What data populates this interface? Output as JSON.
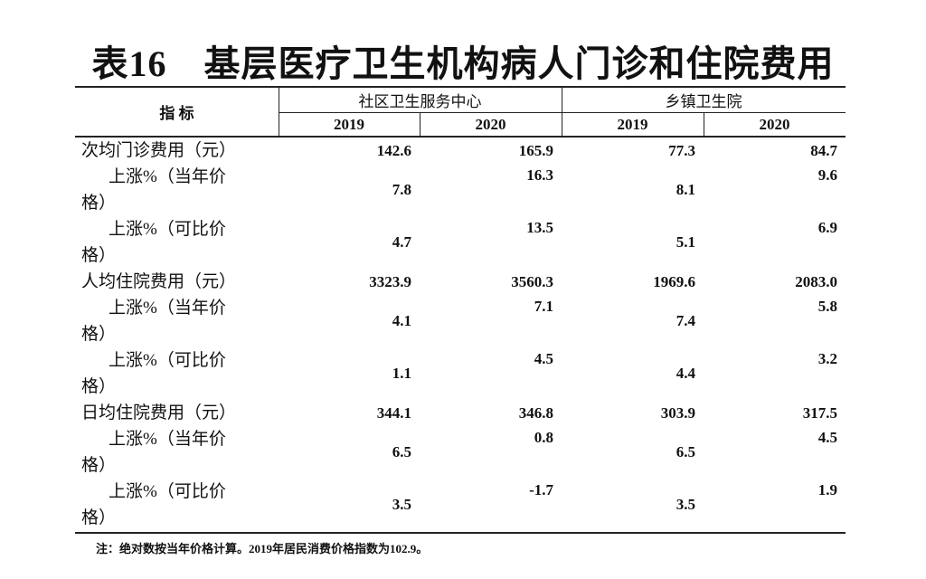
{
  "title": "表16　基层医疗卫生机构病人门诊和住院费用",
  "table": {
    "header": {
      "indicator": "指 标",
      "groups": [
        "社区卫生服务中心",
        "乡镇卫生院"
      ],
      "years": [
        "2019",
        "2020",
        "2019",
        "2020"
      ]
    },
    "rows": [
      {
        "label": "次均门诊费用（元）",
        "values": [
          "142.6",
          "165.9",
          "77.3",
          "84.7"
        ]
      },
      {
        "label": "上涨%（当年价格）",
        "values": [
          "7.8",
          "16.3",
          "8.1",
          "9.6"
        ]
      },
      {
        "label": "上涨%（可比价格）",
        "values": [
          "4.7",
          "13.5",
          "5.1",
          "6.9"
        ]
      },
      {
        "label": "人均住院费用（元）",
        "values": [
          "3323.9",
          "3560.3",
          "1969.6",
          "2083.0"
        ]
      },
      {
        "label": "上涨%（当年价格）",
        "values": [
          "4.1",
          "7.1",
          "7.4",
          "5.8"
        ]
      },
      {
        "label": "上涨%（可比价格）",
        "values": [
          "1.1",
          "4.5",
          "4.4",
          "3.2"
        ]
      },
      {
        "label": "日均住院费用（元）",
        "values": [
          "344.1",
          "346.8",
          "303.9",
          "317.5"
        ]
      },
      {
        "label": "上涨%（当年价格）",
        "values": [
          "6.5",
          "0.8",
          "6.5",
          "4.5"
        ]
      },
      {
        "label": "上涨%（可比价格）",
        "values": [
          "3.5",
          "-1.7",
          "3.5",
          "1.9"
        ]
      }
    ]
  },
  "note": "注：绝对数按当年价格计算。2019年居民消费价格指数为102.9。"
}
